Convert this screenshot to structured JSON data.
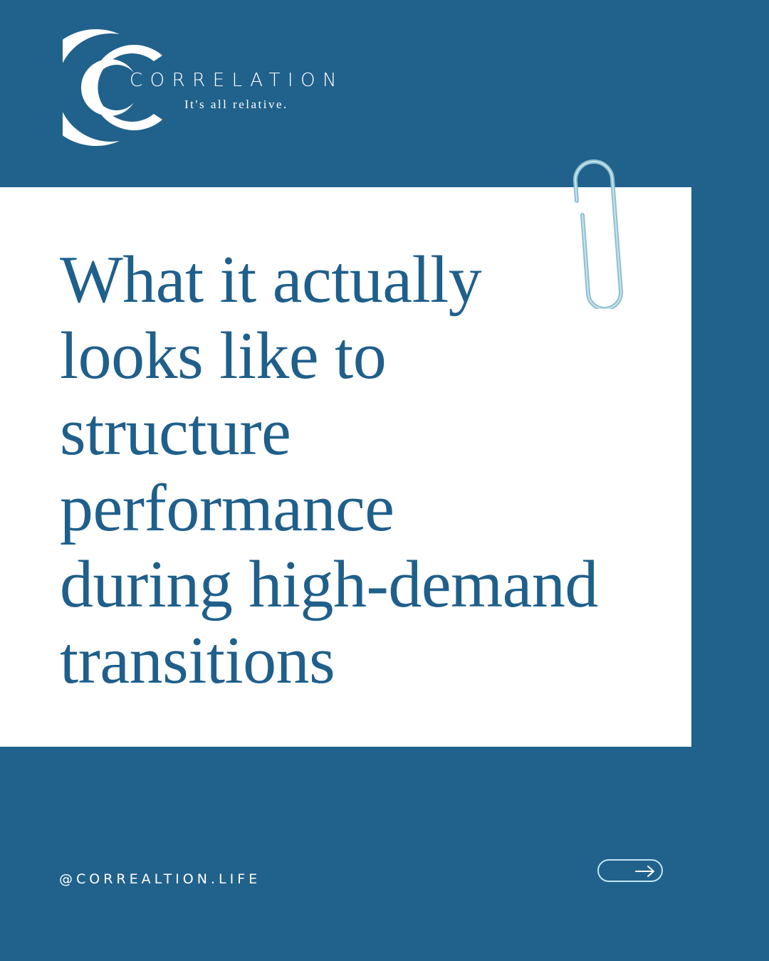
{
  "brand": {
    "name": "CORRELATION",
    "tagline": "It's all relative."
  },
  "headline": {
    "lines": [
      "What it actually",
      "looks like to",
      "structure",
      "performance",
      "during high-demand",
      "transitions"
    ]
  },
  "footer": {
    "handle": "@CORREALTION.LIFE",
    "next_icon": "arrow-right-icon"
  },
  "colors": {
    "background": "#21628c",
    "card": "#ffffff",
    "headline": "#1f5f8b",
    "paperclip": "#8fbfcf",
    "button_outline": "#bfe6f3"
  }
}
